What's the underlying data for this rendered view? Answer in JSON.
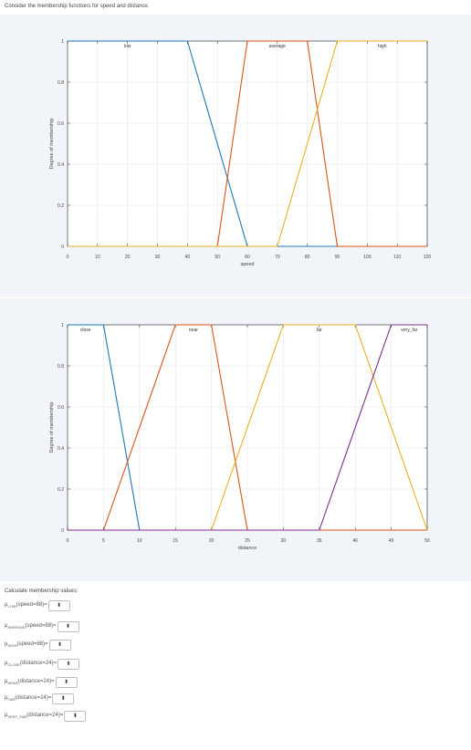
{
  "question": "Consider the membership functions for speed and distance.",
  "calc": {
    "title": "Calculate membership values:",
    "rows": [
      {
        "mu": "μ",
        "sub": "LOW",
        "arg": "(speed=88)="
      },
      {
        "mu": "μ",
        "sub": "AVERAGE",
        "arg": "(speed=88)="
      },
      {
        "mu": "μ",
        "sub": "HIGH",
        "arg": "(speed=88)="
      },
      {
        "mu": "μ",
        "sub": "CLOSE",
        "arg": "(distance=24)="
      },
      {
        "mu": "μ",
        "sub": "NEAR",
        "arg": "(distance=24)="
      },
      {
        "mu": "μ",
        "sub": "FAR",
        "arg": "(distance=24)="
      },
      {
        "mu": "μ",
        "sub": "VERY_FAR",
        "arg": "(distance=24)="
      }
    ],
    "select_arrows": "⬍"
  },
  "chart_data": [
    {
      "type": "line",
      "xlabel": "speed",
      "ylabel": "Degree of membership",
      "xlim": [
        0,
        120
      ],
      "ylim": [
        0,
        1
      ],
      "xticks": [
        0,
        10,
        20,
        30,
        40,
        50,
        60,
        70,
        80,
        90,
        100,
        110,
        120
      ],
      "yticks": [
        0,
        0.2,
        0.4,
        0.6,
        0.8,
        1
      ],
      "grid": true,
      "series": [
        {
          "name": "low",
          "color": "#1f77b4",
          "points": [
            [
              0,
              1
            ],
            [
              40,
              1
            ],
            [
              60,
              0
            ],
            [
              120,
              0
            ]
          ],
          "label_x": 20
        },
        {
          "name": "average",
          "color": "#d95319",
          "points": [
            [
              0,
              0
            ],
            [
              50,
              0
            ],
            [
              60,
              1
            ],
            [
              80,
              1
            ],
            [
              90,
              0
            ],
            [
              120,
              0
            ]
          ],
          "label_x": 70
        },
        {
          "name": "high",
          "color": "#edb120",
          "points": [
            [
              0,
              0
            ],
            [
              70,
              0
            ],
            [
              90,
              1
            ],
            [
              120,
              1
            ]
          ],
          "label_x": 105
        }
      ]
    },
    {
      "type": "line",
      "xlabel": "distance",
      "ylabel": "Degree of membership",
      "xlim": [
        0,
        50
      ],
      "ylim": [
        0,
        1
      ],
      "xticks": [
        0,
        5,
        10,
        15,
        20,
        25,
        30,
        35,
        40,
        45,
        50
      ],
      "yticks": [
        0,
        0.2,
        0.4,
        0.6,
        0.8,
        1
      ],
      "grid": true,
      "series": [
        {
          "name": "close",
          "color": "#1f77b4",
          "points": [
            [
              0,
              1
            ],
            [
              5,
              1
            ],
            [
              10,
              0
            ],
            [
              50,
              0
            ]
          ],
          "label_x": 2.5
        },
        {
          "name": "near",
          "color": "#d95319",
          "points": [
            [
              0,
              0
            ],
            [
              5,
              0
            ],
            [
              15,
              1
            ],
            [
              20,
              1
            ],
            [
              25,
              0
            ],
            [
              50,
              0
            ]
          ],
          "label_x": 17.5
        },
        {
          "name": "far",
          "color": "#edb120",
          "points": [
            [
              0,
              0
            ],
            [
              20,
              0
            ],
            [
              30,
              1
            ],
            [
              40,
              1
            ],
            [
              50,
              0
            ]
          ],
          "label_x": 35
        },
        {
          "name": "very_far",
          "color": "#7e2f8e",
          "points": [
            [
              0,
              0
            ],
            [
              35,
              0
            ],
            [
              45,
              1
            ],
            [
              50,
              1
            ]
          ],
          "label_x": 47.5
        }
      ]
    }
  ]
}
